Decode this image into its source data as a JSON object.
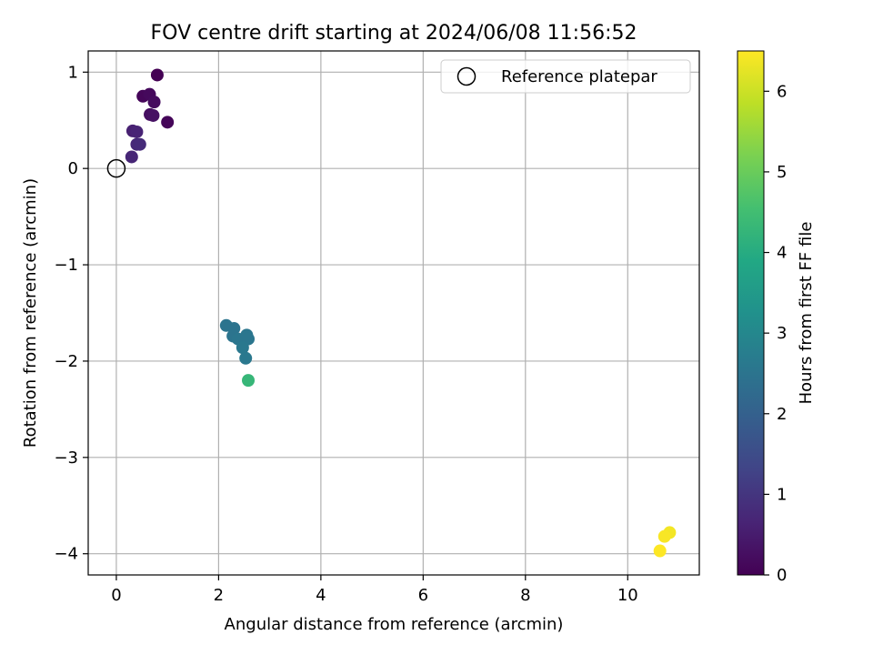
{
  "chart_data": {
    "type": "scatter",
    "title": "FOV centre drift starting at 2024/06/08 11:56:52",
    "xlabel": "Angular distance from reference (arcmin)",
    "ylabel": "Rotation from reference (arcmin)",
    "xlim": [
      -0.55,
      11.4
    ],
    "ylim": [
      -4.22,
      1.22
    ],
    "xticks": [
      0,
      2,
      4,
      6,
      8,
      10
    ],
    "xtick_labels": [
      "0",
      "2",
      "4",
      "6",
      "8",
      "10"
    ],
    "yticks": [
      1,
      0,
      -1,
      -2,
      -3,
      -4
    ],
    "ytick_labels": [
      "1",
      "0",
      "−1",
      "−2",
      "−3",
      "−4"
    ],
    "grid": true,
    "legend": {
      "position": "top-right",
      "entries": [
        "Reference platepar"
      ]
    },
    "reference_point": {
      "x": 0,
      "y": 0,
      "label": "Reference platepar"
    },
    "colorbar": {
      "label": "Hours from first FF file",
      "range": [
        0,
        6.5
      ],
      "ticks": [
        0,
        1,
        2,
        3,
        4,
        5,
        6
      ],
      "tick_labels": [
        "0",
        "1",
        "2",
        "3",
        "4",
        "5",
        "6"
      ],
      "colormap": "viridis"
    },
    "points": [
      {
        "x": 0.8,
        "y": 0.97,
        "hours": 0.0
      },
      {
        "x": 0.52,
        "y": 0.75,
        "hours": 0.1
      },
      {
        "x": 0.65,
        "y": 0.77,
        "hours": 0.15
      },
      {
        "x": 0.74,
        "y": 0.69,
        "hours": 0.2
      },
      {
        "x": 0.66,
        "y": 0.56,
        "hours": 0.25
      },
      {
        "x": 0.72,
        "y": 0.55,
        "hours": 0.3
      },
      {
        "x": 1.0,
        "y": 0.48,
        "hours": 0.1
      },
      {
        "x": 0.32,
        "y": 0.39,
        "hours": 0.6
      },
      {
        "x": 0.4,
        "y": 0.38,
        "hours": 0.65
      },
      {
        "x": 0.4,
        "y": 0.25,
        "hours": 0.75
      },
      {
        "x": 0.46,
        "y": 0.25,
        "hours": 0.8
      },
      {
        "x": 0.3,
        "y": 0.12,
        "hours": 0.7
      },
      {
        "x": 2.15,
        "y": -1.63,
        "hours": 2.5
      },
      {
        "x": 2.3,
        "y": -1.66,
        "hours": 2.5
      },
      {
        "x": 2.28,
        "y": -1.74,
        "hours": 2.5
      },
      {
        "x": 2.38,
        "y": -1.77,
        "hours": 2.55
      },
      {
        "x": 2.55,
        "y": -1.73,
        "hours": 2.55
      },
      {
        "x": 2.58,
        "y": -1.77,
        "hours": 2.55
      },
      {
        "x": 2.47,
        "y": -1.86,
        "hours": 2.6
      },
      {
        "x": 2.53,
        "y": -1.97,
        "hours": 2.6
      },
      {
        "x": 2.58,
        "y": -2.2,
        "hours": 4.3
      },
      {
        "x": 10.82,
        "y": -3.78,
        "hours": 6.4
      },
      {
        "x": 10.72,
        "y": -3.82,
        "hours": 6.45
      },
      {
        "x": 10.63,
        "y": -3.97,
        "hours": 6.5
      }
    ]
  }
}
